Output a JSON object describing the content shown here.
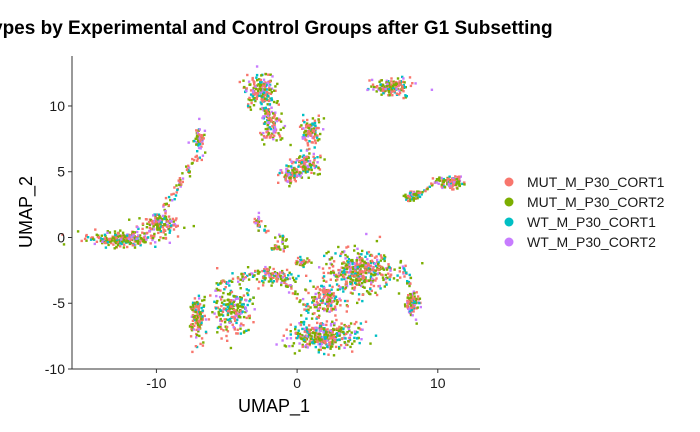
{
  "chart_data": {
    "type": "scatter",
    "title": "ypes by Experimental and Control Groups after G1 Subsetting",
    "xlabel": "UMAP_1",
    "ylabel": "UMAP_2",
    "xlim": [
      -16,
      13
    ],
    "ylim": [
      -10,
      13.8
    ],
    "x_ticks": [
      -10,
      0,
      10
    ],
    "y_ticks": [
      -10,
      -5,
      0,
      5,
      10
    ],
    "grid": false,
    "legend_position": "right",
    "series": [
      {
        "name": "MUT_M_P30_CORT1",
        "color": "#F8766D"
      },
      {
        "name": "MUT_M_P30_CORT2",
        "color": "#7CAE00"
      },
      {
        "name": "WT_M_P30_CORT1",
        "color": "#00BFC4"
      },
      {
        "name": "WT_M_P30_CORT2",
        "color": "#C77CFF"
      }
    ],
    "clusters": [
      {
        "cx": -12.5,
        "cy": -0.1,
        "rx": 2.4,
        "ry": 0.55,
        "n": 260
      },
      {
        "cx": -9.8,
        "cy": 1.0,
        "rx": 1.5,
        "ry": 0.7,
        "n": 140
      },
      {
        "cx": -7.0,
        "cy": 7.6,
        "rx": 0.35,
        "ry": 0.9,
        "n": 60
      },
      {
        "cx": -7.1,
        "cy": -6.0,
        "rx": 0.6,
        "ry": 1.6,
        "n": 140
      },
      {
        "cx": -4.6,
        "cy": -5.5,
        "rx": 1.4,
        "ry": 1.8,
        "n": 230
      },
      {
        "cx": -1.6,
        "cy": -3.0,
        "rx": 1.8,
        "ry": 0.6,
        "n": 100
      },
      {
        "cx": 0.4,
        "cy": -1.9,
        "rx": 0.6,
        "ry": 0.3,
        "n": 40
      },
      {
        "cx": 2.0,
        "cy": -7.5,
        "rx": 2.3,
        "ry": 1.1,
        "n": 380
      },
      {
        "cx": 2.1,
        "cy": -4.7,
        "rx": 1.1,
        "ry": 1.3,
        "n": 160
      },
      {
        "cx": 4.5,
        "cy": -2.6,
        "rx": 2.3,
        "ry": 1.6,
        "n": 420
      },
      {
        "cx": 8.2,
        "cy": -5.0,
        "rx": 0.55,
        "ry": 1.0,
        "n": 80
      },
      {
        "cx": -2.6,
        "cy": 11.2,
        "rx": 1.0,
        "ry": 1.4,
        "n": 180
      },
      {
        "cx": -1.8,
        "cy": 8.5,
        "rx": 0.8,
        "ry": 1.2,
        "n": 110
      },
      {
        "cx": 1.0,
        "cy": 8.1,
        "rx": 0.8,
        "ry": 1.0,
        "n": 100
      },
      {
        "cx": 0.6,
        "cy": 5.6,
        "rx": 0.9,
        "ry": 0.9,
        "n": 120
      },
      {
        "cx": -0.5,
        "cy": 4.7,
        "rx": 0.7,
        "ry": 0.55,
        "n": 70
      },
      {
        "cx": 6.8,
        "cy": 11.5,
        "rx": 1.3,
        "ry": 0.6,
        "n": 130
      },
      {
        "cx": 10.8,
        "cy": 4.2,
        "rx": 1.1,
        "ry": 0.45,
        "n": 110
      },
      {
        "cx": 8.2,
        "cy": 3.1,
        "rx": 0.6,
        "ry": 0.3,
        "n": 40
      },
      {
        "cx": -2.8,
        "cy": 1.2,
        "rx": 0.25,
        "ry": 0.6,
        "n": 20
      },
      {
        "cx": -1.4,
        "cy": -0.8,
        "rx": 0.8,
        "ry": 0.25,
        "n": 25
      }
    ],
    "trails": [
      {
        "x1": -10.2,
        "y1": 1.2,
        "x2": -6.7,
        "y2": 6.5,
        "n": 70
      },
      {
        "x1": -5.5,
        "y1": -3.6,
        "x2": -1.5,
        "y2": -2.2,
        "n": 50
      },
      {
        "x1": -1.3,
        "y1": -2.9,
        "x2": 1.4,
        "y2": -6.0,
        "n": 40
      },
      {
        "x1": 7.4,
        "y1": -2.2,
        "x2": 8.2,
        "y2": -4.0,
        "n": 25
      },
      {
        "x1": 8.2,
        "y1": 3.1,
        "x2": 10.0,
        "y2": 4.1,
        "n": 25
      },
      {
        "x1": -2.6,
        "y1": 0.7,
        "x2": -0.5,
        "y2": -0.4,
        "n": 20
      },
      {
        "x1": -2.4,
        "y1": 9.8,
        "x2": -1.9,
        "y2": 9.3,
        "n": 15
      },
      {
        "x1": 5.6,
        "y1": 11.3,
        "x2": 8.0,
        "y2": 10.6,
        "n": 30
      }
    ]
  }
}
